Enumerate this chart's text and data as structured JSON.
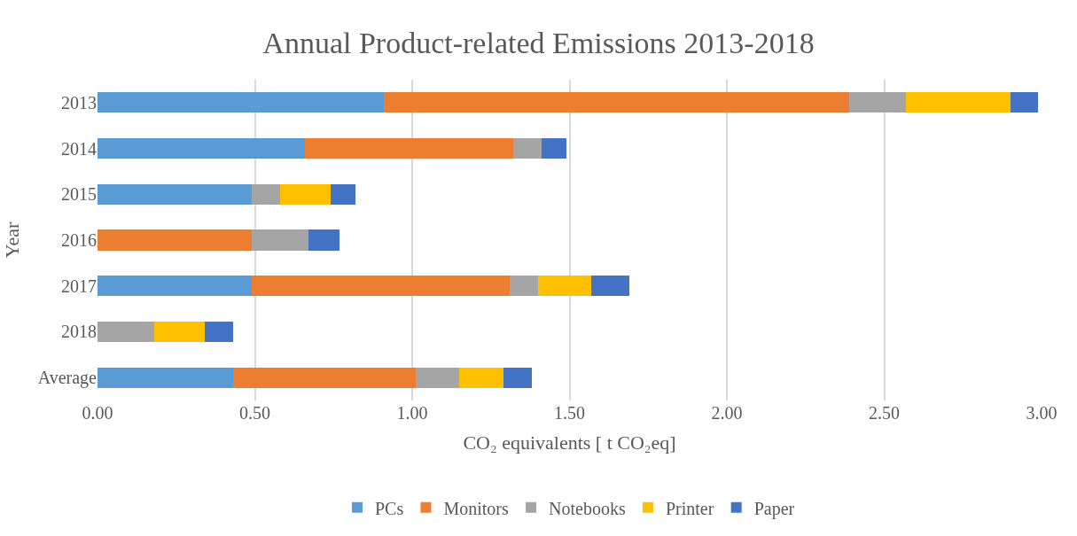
{
  "chart_data": {
    "type": "bar",
    "orientation": "horizontal",
    "stacked": true,
    "title": "Annual Product-related Emissions 2013-2018",
    "xlabel": "CO₂ equivalents [ t CO₂eq]",
    "ylabel": "Year",
    "categories": [
      "2013",
      "2014",
      "2015",
      "2016",
      "2017",
      "2018",
      "Average"
    ],
    "series": [
      {
        "name": "PCs",
        "color": "#5b9bd5",
        "values": [
          0.91,
          0.66,
          0.49,
          null,
          0.49,
          null,
          0.43
        ]
      },
      {
        "name": "Monitors",
        "color": "#ed7d31",
        "values": [
          1.48,
          0.66,
          null,
          0.49,
          0.82,
          null,
          0.58
        ]
      },
      {
        "name": "Notebooks",
        "color": "#a5a5a5",
        "values": [
          0.18,
          0.09,
          0.09,
          0.18,
          0.09,
          0.18,
          0.14
        ]
      },
      {
        "name": "Printer",
        "color": "#ffc000",
        "values": [
          0.33,
          null,
          0.16,
          null,
          0.17,
          0.16,
          0.14
        ]
      },
      {
        "name": "Paper",
        "color": "#4472c4",
        "values": [
          0.09,
          0.08,
          0.08,
          0.1,
          0.12,
          0.09,
          0.09
        ]
      }
    ],
    "xlim": [
      0,
      3.0
    ],
    "xticks": [
      {
        "value": 0,
        "label": "0.00"
      },
      {
        "value": 0.5,
        "label": "0.50"
      },
      {
        "value": 1.0,
        "label": "1.00"
      },
      {
        "value": 1.5,
        "label": "1.50"
      },
      {
        "value": 2.0,
        "label": "2.00"
      },
      {
        "value": 2.5,
        "label": "2.50"
      },
      {
        "value": 3.0,
        "label": "3.00"
      }
    ],
    "grid": "x",
    "legend": "bottom"
  }
}
